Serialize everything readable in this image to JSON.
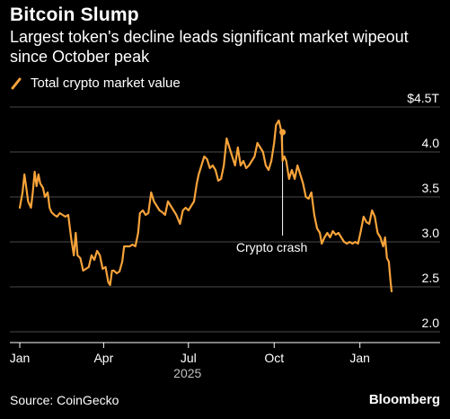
{
  "header": {
    "title": "Bitcoin Slump",
    "subtitle": "Largest token's decline leads significant market wipeout since October peak"
  },
  "legend": {
    "label": "Total crypto market value"
  },
  "footer": {
    "source": "Source: CoinGecko",
    "brand": "Bloomberg"
  },
  "colors": {
    "series": "#f7a33a",
    "background": "#000000",
    "grid": "#4a4a4a",
    "text": "#ffffff"
  },
  "chart_data": {
    "type": "line",
    "xlabel": "",
    "ylabel": "",
    "x_start": "2025-01-01",
    "x_end": "2026-02-05",
    "ylim": [
      2.0,
      4.5
    ],
    "y_ticks": [
      {
        "value": 4.5,
        "label": "$4.5T"
      },
      {
        "value": 4.0,
        "label": "4.0"
      },
      {
        "value": 3.5,
        "label": "3.5"
      },
      {
        "value": 3.0,
        "label": "3.0"
      },
      {
        "value": 2.5,
        "label": "2.5"
      },
      {
        "value": 2.0,
        "label": "2.0"
      }
    ],
    "x_ticks": [
      {
        "date": "2025-01-01",
        "label": "Jan"
      },
      {
        "date": "2025-04-01",
        "label": "Apr"
      },
      {
        "date": "2025-07-01",
        "label": "Jul"
      },
      {
        "date": "2025-10-01",
        "label": "Oct"
      },
      {
        "date": "2026-01-01",
        "label": "Jan"
      }
    ],
    "year_label": {
      "date": "2025-06-30",
      "label": "2025"
    },
    "grid": true,
    "legend_position": "top-left",
    "series": [
      {
        "name": "Total crypto market value",
        "points": [
          [
            "2025-01-01",
            3.38
          ],
          [
            "2025-01-04",
            3.55
          ],
          [
            "2025-01-06",
            3.75
          ],
          [
            "2025-01-08",
            3.6
          ],
          [
            "2025-01-10",
            3.45
          ],
          [
            "2025-01-13",
            3.38
          ],
          [
            "2025-01-15",
            3.55
          ],
          [
            "2025-01-17",
            3.78
          ],
          [
            "2025-01-19",
            3.62
          ],
          [
            "2025-01-21",
            3.75
          ],
          [
            "2025-01-23",
            3.65
          ],
          [
            "2025-01-26",
            3.6
          ],
          [
            "2025-01-28",
            3.5
          ],
          [
            "2025-01-31",
            3.55
          ],
          [
            "2025-02-02",
            3.38
          ],
          [
            "2025-02-04",
            3.33
          ],
          [
            "2025-02-07",
            3.3
          ],
          [
            "2025-02-10",
            3.28
          ],
          [
            "2025-02-13",
            3.32
          ],
          [
            "2025-02-16",
            3.3
          ],
          [
            "2025-02-19",
            3.28
          ],
          [
            "2025-02-22",
            3.3
          ],
          [
            "2025-02-25",
            3.05
          ],
          [
            "2025-02-28",
            2.85
          ],
          [
            "2025-03-02",
            3.1
          ],
          [
            "2025-03-04",
            2.85
          ],
          [
            "2025-03-07",
            2.82
          ],
          [
            "2025-03-10",
            2.68
          ],
          [
            "2025-03-13",
            2.7
          ],
          [
            "2025-03-16",
            2.72
          ],
          [
            "2025-03-19",
            2.85
          ],
          [
            "2025-03-22",
            2.8
          ],
          [
            "2025-03-25",
            2.9
          ],
          [
            "2025-03-28",
            2.85
          ],
          [
            "2025-03-31",
            2.7
          ],
          [
            "2025-04-03",
            2.72
          ],
          [
            "2025-04-06",
            2.55
          ],
          [
            "2025-04-08",
            2.52
          ],
          [
            "2025-04-10",
            2.68
          ],
          [
            "2025-04-12",
            2.68
          ],
          [
            "2025-04-15",
            2.65
          ],
          [
            "2025-04-18",
            2.67
          ],
          [
            "2025-04-21",
            2.78
          ],
          [
            "2025-04-23",
            2.95
          ],
          [
            "2025-04-26",
            2.95
          ],
          [
            "2025-04-29",
            2.95
          ],
          [
            "2025-05-02",
            2.97
          ],
          [
            "2025-05-05",
            2.95
          ],
          [
            "2025-05-08",
            3.1
          ],
          [
            "2025-05-10",
            3.32
          ],
          [
            "2025-05-13",
            3.35
          ],
          [
            "2025-05-16",
            3.3
          ],
          [
            "2025-05-19",
            3.32
          ],
          [
            "2025-05-22",
            3.55
          ],
          [
            "2025-05-25",
            3.45
          ],
          [
            "2025-05-28",
            3.4
          ],
          [
            "2025-05-31",
            3.35
          ],
          [
            "2025-06-03",
            3.33
          ],
          [
            "2025-06-06",
            3.3
          ],
          [
            "2025-06-09",
            3.45
          ],
          [
            "2025-06-12",
            3.4
          ],
          [
            "2025-06-15",
            3.35
          ],
          [
            "2025-06-18",
            3.3
          ],
          [
            "2025-06-22",
            3.2
          ],
          [
            "2025-06-25",
            3.35
          ],
          [
            "2025-06-28",
            3.38
          ],
          [
            "2025-07-01",
            3.35
          ],
          [
            "2025-07-04",
            3.4
          ],
          [
            "2025-07-07",
            3.45
          ],
          [
            "2025-07-10",
            3.65
          ],
          [
            "2025-07-12",
            3.75
          ],
          [
            "2025-07-15",
            3.85
          ],
          [
            "2025-07-18",
            3.95
          ],
          [
            "2025-07-21",
            3.92
          ],
          [
            "2025-07-24",
            3.82
          ],
          [
            "2025-07-27",
            3.85
          ],
          [
            "2025-07-30",
            3.8
          ],
          [
            "2025-08-02",
            3.68
          ],
          [
            "2025-08-05",
            3.7
          ],
          [
            "2025-08-08",
            3.85
          ],
          [
            "2025-08-11",
            4.15
          ],
          [
            "2025-08-14",
            4.05
          ],
          [
            "2025-08-17",
            3.95
          ],
          [
            "2025-08-20",
            3.85
          ],
          [
            "2025-08-23",
            4.05
          ],
          [
            "2025-08-26",
            3.85
          ],
          [
            "2025-08-29",
            3.9
          ],
          [
            "2025-09-01",
            3.82
          ],
          [
            "2025-09-04",
            3.85
          ],
          [
            "2025-09-07",
            3.9
          ],
          [
            "2025-09-10",
            3.95
          ],
          [
            "2025-09-13",
            4.1
          ],
          [
            "2025-09-16",
            4.05
          ],
          [
            "2025-09-19",
            4.0
          ],
          [
            "2025-09-22",
            3.85
          ],
          [
            "2025-09-25",
            3.8
          ],
          [
            "2025-09-28",
            3.9
          ],
          [
            "2025-10-01",
            4.1
          ],
          [
            "2025-10-03",
            4.3
          ],
          [
            "2025-10-06",
            4.35
          ],
          [
            "2025-10-09",
            4.22
          ],
          [
            "2025-10-10",
            3.9
          ],
          [
            "2025-10-12",
            3.95
          ],
          [
            "2025-10-14",
            3.9
          ],
          [
            "2025-10-17",
            3.7
          ],
          [
            "2025-10-20",
            3.8
          ],
          [
            "2025-10-23",
            3.7
          ],
          [
            "2025-10-26",
            3.85
          ],
          [
            "2025-10-29",
            3.75
          ],
          [
            "2025-11-01",
            3.65
          ],
          [
            "2025-11-04",
            3.5
          ],
          [
            "2025-11-07",
            3.48
          ],
          [
            "2025-11-10",
            3.55
          ],
          [
            "2025-11-13",
            3.3
          ],
          [
            "2025-11-16",
            3.15
          ],
          [
            "2025-11-19",
            3.1
          ],
          [
            "2025-11-21",
            2.98
          ],
          [
            "2025-11-24",
            3.05
          ],
          [
            "2025-11-27",
            3.1
          ],
          [
            "2025-11-30",
            3.05
          ],
          [
            "2025-12-03",
            3.12
          ],
          [
            "2025-12-06",
            3.08
          ],
          [
            "2025-12-09",
            3.1
          ],
          [
            "2025-12-12",
            3.05
          ],
          [
            "2025-12-15",
            3.0
          ],
          [
            "2025-12-18",
            2.98
          ],
          [
            "2025-12-21",
            3.0
          ],
          [
            "2025-12-24",
            2.98
          ],
          [
            "2025-12-27",
            3.0
          ],
          [
            "2025-12-30",
            2.98
          ],
          [
            "2026-01-02",
            3.12
          ],
          [
            "2026-01-05",
            3.28
          ],
          [
            "2026-01-08",
            3.22
          ],
          [
            "2026-01-11",
            3.2
          ],
          [
            "2026-01-14",
            3.35
          ],
          [
            "2026-01-17",
            3.28
          ],
          [
            "2026-01-20",
            3.1
          ],
          [
            "2026-01-23",
            3.05
          ],
          [
            "2026-01-26",
            2.95
          ],
          [
            "2026-01-28",
            3.05
          ],
          [
            "2026-01-30",
            2.82
          ],
          [
            "2026-02-01",
            2.78
          ],
          [
            "2026-02-03",
            2.55
          ],
          [
            "2026-02-04",
            2.45
          ]
        ]
      }
    ],
    "annotation": {
      "date": "2025-10-10",
      "value": 4.22,
      "label": "Crypto crash"
    }
  }
}
